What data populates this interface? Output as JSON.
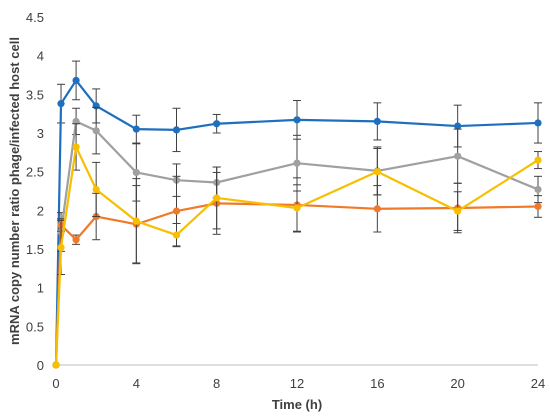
{
  "chart_data": {
    "type": "line",
    "title": "",
    "xlabel": "Time (h)",
    "ylabel": "mRNA copy number ratio phage/infected host cell",
    "xlim": [
      0,
      24
    ],
    "ylim": [
      0,
      4.5
    ],
    "x_ticks": [
      0,
      4,
      8,
      12,
      16,
      20,
      24
    ],
    "y_ticks": [
      0,
      0.5,
      1,
      1.5,
      2,
      2.5,
      3,
      3.5,
      4,
      4.5
    ],
    "x_tick_labels": [
      "0",
      "4",
      "8",
      "12",
      "16",
      "20",
      "24"
    ],
    "y_tick_labels": [
      "0",
      "0.5",
      "1",
      "1.5",
      "2",
      "2.5",
      "3",
      "3.5",
      "4",
      "4.5"
    ],
    "grid": false,
    "legend": "none",
    "series": [
      {
        "color": "#1f6fbf",
        "x": [
          0,
          0.25,
          1,
          2,
          4,
          6,
          8,
          12,
          16,
          20,
          24
        ],
        "y": [
          0,
          3.38,
          3.68,
          3.35,
          3.05,
          3.04,
          3.12,
          3.17,
          3.15,
          3.09,
          3.13
        ],
        "err": [
          0,
          0.25,
          0.25,
          0.22,
          0.18,
          0.28,
          0.12,
          0.25,
          0.24,
          0.27,
          0.26
        ]
      },
      {
        "color": "#a0a0a0",
        "x": [
          0,
          0.25,
          1,
          2,
          4,
          6,
          8,
          12,
          16,
          20,
          24
        ],
        "y": [
          0,
          1.72,
          3.15,
          3.03,
          2.49,
          2.39,
          2.36,
          2.61,
          2.51,
          2.7,
          2.27
        ],
        "err": [
          0,
          0.25,
          0.17,
          0.3,
          0.37,
          0.21,
          0.2,
          0.36,
          0.31,
          0.35,
          0.17
        ]
      },
      {
        "color": "#f07a2a",
        "x": [
          0,
          0.25,
          1,
          2,
          4,
          6,
          8,
          12,
          16,
          20,
          24
        ],
        "y": [
          0,
          1.81,
          1.62,
          1.92,
          1.82,
          1.99,
          2.09,
          2.07,
          2.02,
          2.03,
          2.05
        ],
        "err": [
          0,
          0.08,
          0.06,
          0.3,
          0.5,
          0.45,
          0.4,
          0.35,
          0.3,
          0.32,
          0.14
        ]
      },
      {
        "color": "#f7bf00",
        "x": [
          0,
          0.25,
          1,
          2,
          4,
          6,
          8,
          12,
          16,
          20,
          24
        ],
        "y": [
          0,
          1.52,
          2.82,
          2.27,
          1.86,
          1.68,
          2.16,
          2.03,
          2.5,
          1.99,
          2.65
        ],
        "err": [
          0,
          0.35,
          0.3,
          0.35,
          0.55,
          0.15,
          0.4,
          0.3,
          0.3,
          0.25,
          0.11
        ]
      }
    ]
  }
}
